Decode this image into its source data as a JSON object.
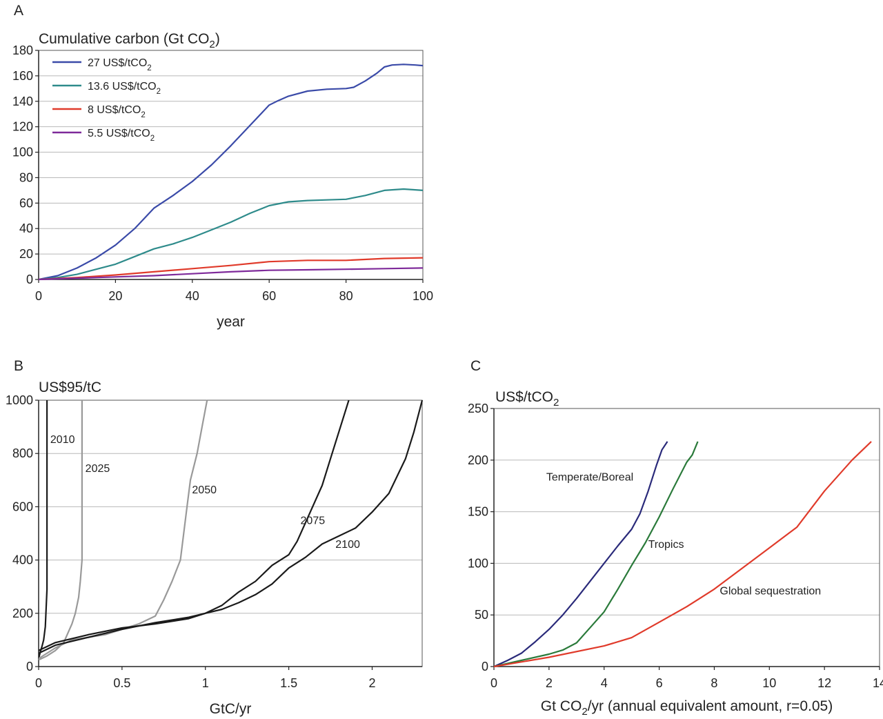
{
  "chart_data": [
    {
      "panel": "A",
      "type": "line",
      "ylabel": "Cumulative carbon (Gt CO2)",
      "ylabel_main": "Cumulative carbon (Gt CO",
      "ylabel_sub": "2",
      "ylabel_end": ")",
      "xlabel": "year",
      "xlim": [
        0,
        100
      ],
      "ylim": [
        0,
        180
      ],
      "xticks": [
        "0",
        "20",
        "40",
        "60",
        "80",
        "100"
      ],
      "yticks": [
        "0",
        "20",
        "40",
        "60",
        "80",
        "100",
        "120",
        "140",
        "160",
        "180"
      ],
      "grid": "horizontal",
      "legend_position": "top-left",
      "series": [
        {
          "name": "27 US$/tCO2",
          "label_main": "27 US$/tCO",
          "label_sub": "2",
          "color": "#3a4aa8",
          "x": [
            0,
            5,
            10,
            15,
            20,
            25,
            30,
            35,
            40,
            45,
            50,
            55,
            60,
            62,
            65,
            70,
            75,
            80,
            82,
            85,
            88,
            90,
            92,
            95,
            98,
            100
          ],
          "y": [
            0,
            3,
            9,
            17,
            27,
            40,
            56,
            66,
            77,
            90,
            105,
            121,
            137,
            140,
            144,
            148,
            149.5,
            150,
            151,
            156,
            162,
            167,
            168.5,
            169,
            168.5,
            168
          ]
        },
        {
          "name": "13.6 US$/tCO2",
          "label_main": "13.6 US$/tCO",
          "label_sub": "2",
          "color": "#2e8b8b",
          "x": [
            0,
            5,
            10,
            15,
            20,
            25,
            30,
            35,
            40,
            45,
            50,
            55,
            60,
            65,
            70,
            75,
            80,
            85,
            90,
            95,
            100
          ],
          "y": [
            0,
            1.5,
            4,
            8,
            12,
            18,
            24,
            28,
            33,
            39,
            45,
            52,
            58,
            61,
            62,
            62.5,
            63,
            66,
            70,
            71,
            70
          ]
        },
        {
          "name": "8 US$/tCO2",
          "label_main": "8 US$/tCO",
          "label_sub": "2",
          "color": "#e03a2a",
          "x": [
            0,
            10,
            20,
            30,
            40,
            50,
            60,
            70,
            80,
            90,
            100
          ],
          "y": [
            0,
            1.5,
            3.5,
            6,
            8.5,
            11,
            14,
            15,
            15,
            16.5,
            17
          ]
        },
        {
          "name": "5.5 US$/tCO2",
          "label_main": "5.5 US$/tCO",
          "label_sub": "2",
          "color": "#7e2a9a",
          "x": [
            0,
            10,
            20,
            30,
            40,
            50,
            60,
            70,
            80,
            90,
            100
          ],
          "y": [
            0,
            1,
            2,
            3,
            4.5,
            6,
            7.2,
            7.6,
            8,
            8.5,
            9
          ]
        }
      ]
    },
    {
      "panel": "B",
      "type": "line",
      "ylabel": "US$95/tC",
      "xlabel": "GtC/yr",
      "xlim": [
        0,
        2.3
      ],
      "ylim": [
        0,
        1000
      ],
      "xticks": [
        "0",
        "0.5",
        "1",
        "1.5",
        "2"
      ],
      "xtick_values": [
        0,
        0.5,
        1,
        1.5,
        2
      ],
      "yticks": [
        "0",
        "200",
        "400",
        "600",
        "800",
        "1000"
      ],
      "grid": "horizontal",
      "series": [
        {
          "name": "2010",
          "color": "#1a1a1a",
          "x": [
            0,
            0.01,
            0.02,
            0.03,
            0.04,
            0.045,
            0.05,
            0.05,
            0.05
          ],
          "y": [
            30,
            55,
            75,
            100,
            150,
            220,
            290,
            600,
            1000
          ]
        },
        {
          "name": "2025",
          "color": "#999999",
          "x": [
            0,
            0.05,
            0.1,
            0.15,
            0.2,
            0.22,
            0.24,
            0.25,
            0.26,
            0.26,
            0.26
          ],
          "y": [
            25,
            40,
            60,
            90,
            160,
            200,
            260,
            320,
            400,
            700,
            1000
          ]
        },
        {
          "name": "2050",
          "color": "#999999",
          "x": [
            0,
            0.1,
            0.2,
            0.3,
            0.4,
            0.5,
            0.6,
            0.7,
            0.75,
            0.8,
            0.85,
            0.87,
            0.89,
            0.91,
            0.95,
            0.98,
            1.01
          ],
          "y": [
            30,
            70,
            100,
            110,
            120,
            140,
            160,
            190,
            250,
            320,
            400,
            500,
            600,
            700,
            800,
            900,
            1000
          ]
        },
        {
          "name": "2075",
          "color": "#1a1a1a",
          "x": [
            0,
            0.1,
            0.3,
            0.5,
            0.7,
            0.9,
            1.0,
            1.1,
            1.2,
            1.3,
            1.4,
            1.5,
            1.55,
            1.6,
            1.7,
            1.75,
            1.8,
            1.86
          ],
          "y": [
            50,
            80,
            110,
            140,
            165,
            185,
            200,
            230,
            280,
            320,
            380,
            420,
            470,
            540,
            680,
            780,
            880,
            1000
          ]
        },
        {
          "name": "2100",
          "color": "#1a1a1a",
          "x": [
            0,
            0.1,
            0.3,
            0.5,
            0.7,
            0.9,
            1.0,
            1.1,
            1.2,
            1.3,
            1.4,
            1.5,
            1.6,
            1.7,
            1.8,
            1.9,
            2.0,
            2.1,
            2.2,
            2.25,
            2.3
          ],
          "y": [
            60,
            90,
            120,
            145,
            160,
            180,
            200,
            215,
            240,
            270,
            310,
            370,
            410,
            460,
            490,
            520,
            580,
            650,
            780,
            880,
            1000
          ]
        }
      ],
      "labels": [
        {
          "text": "2010",
          "x": 0.07,
          "y": 840
        },
        {
          "text": "2025",
          "x": 0.28,
          "y": 730
        },
        {
          "text": "2050",
          "x": 0.92,
          "y": 650
        },
        {
          "text": "2075",
          "x": 1.57,
          "y": 535
        },
        {
          "text": "2100",
          "x": 1.78,
          "y": 445
        }
      ]
    },
    {
      "panel": "C",
      "type": "line",
      "ylabel": "US$/tCO2",
      "ylabel_main": "US$/tCO",
      "ylabel_sub": "2",
      "xlabel": "Gt CO2/yr (annual equivalent amount, r=0.05)",
      "xlabel_main": "Gt CO",
      "xlabel_sub": "2",
      "xlabel_end": "/yr (annual equivalent amount, r=0.05)",
      "xlim": [
        0,
        14
      ],
      "ylim": [
        0,
        250
      ],
      "xticks": [
        "0",
        "2",
        "4",
        "6",
        "8",
        "10",
        "12",
        "14"
      ],
      "yticks": [
        "0",
        "50",
        "100",
        "150",
        "200",
        "250"
      ],
      "grid": "horizontal",
      "series": [
        {
          "name": "Temperate/Boreal",
          "color": "#2a2a7a",
          "x": [
            0,
            0.5,
            1,
            1.5,
            2,
            2.5,
            3,
            3.5,
            4,
            4.5,
            5,
            5.3,
            5.6,
            5.9,
            6.1,
            6.3
          ],
          "y": [
            0,
            6,
            13,
            24,
            36,
            50,
            66,
            83,
            100,
            117,
            133,
            148,
            170,
            195,
            210,
            218
          ]
        },
        {
          "name": "Tropics",
          "color": "#2a7a3a",
          "x": [
            0,
            1,
            2,
            2.5,
            3,
            3.5,
            4,
            4.5,
            5,
            5.5,
            6,
            6.5,
            7,
            7.2,
            7.4
          ],
          "y": [
            0,
            6,
            12,
            16,
            23,
            38,
            53,
            75,
            98,
            120,
            145,
            172,
            198,
            205,
            218
          ]
        },
        {
          "name": "Global sequestration",
          "color": "#e03a2a",
          "x": [
            0,
            2,
            4,
            5,
            6,
            7,
            8,
            9,
            10,
            11,
            12,
            13,
            13.7
          ],
          "y": [
            0,
            9,
            20,
            28,
            43,
            58,
            75,
            95,
            115,
            135,
            170,
            200,
            218
          ]
        }
      ],
      "labels": [
        {
          "text": "Temperate/Boreal",
          "x": 1.9,
          "y": 180
        },
        {
          "text": "Tropics",
          "x": 5.6,
          "y": 115
        },
        {
          "text": "Global sequestration",
          "x": 8.2,
          "y": 70
        }
      ]
    }
  ],
  "panel_letters": [
    "A",
    "B",
    "C"
  ]
}
